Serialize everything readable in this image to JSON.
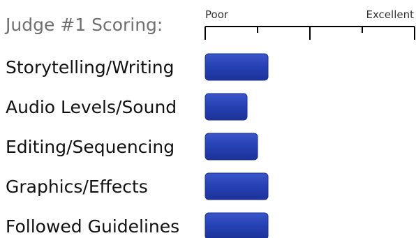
{
  "chart_data": {
    "type": "bar",
    "orientation": "horizontal",
    "title": "Judge #1 Scoring:",
    "scale_labels": {
      "min": "Poor",
      "max": "Excellent"
    },
    "xlim": [
      0,
      4
    ],
    "categories": [
      "Storytelling/Writing",
      "Audio Levels/Sound",
      "Editing/Sequencing",
      "Graphics/Effects",
      "Followed Guidelines"
    ],
    "values": [
      1.2,
      0.8,
      1.0,
      1.2,
      1.2
    ],
    "grid": false,
    "legend": "none"
  },
  "colors": {
    "bar": "#2540b3",
    "bar_edge": "#1a2f8f",
    "title": "#6f6f6f",
    "axis": "#000000"
  }
}
